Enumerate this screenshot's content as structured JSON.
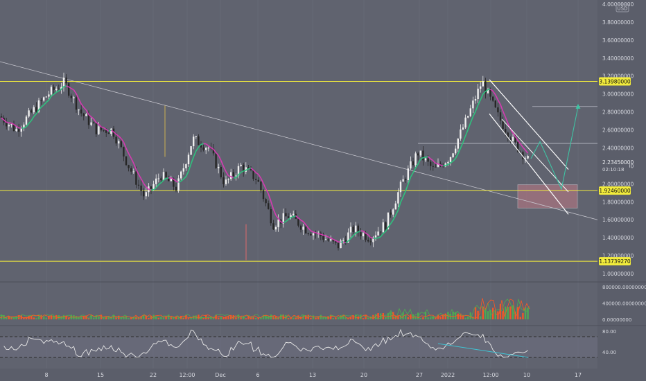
{
  "price_axis": {
    "currency": "USD",
    "ticks": [
      {
        "label": "4.00000000",
        "value": 4.0
      },
      {
        "label": "3.80000000",
        "value": 3.8
      },
      {
        "label": "3.60000000",
        "value": 3.6
      },
      {
        "label": "3.40000000",
        "value": 3.4
      },
      {
        "label": "3.20000000",
        "value": 3.2
      },
      {
        "label": "3.00000000",
        "value": 3.0
      },
      {
        "label": "2.80000000",
        "value": 2.8
      },
      {
        "label": "2.60000000",
        "value": 2.6
      },
      {
        "label": "2.40000000",
        "value": 2.4
      },
      {
        "label": "2.20000000",
        "value": 2.2
      },
      {
        "label": "2.00000000",
        "value": 2.0
      },
      {
        "label": "1.80000000",
        "value": 1.8
      },
      {
        "label": "1.60000000",
        "value": 1.6
      },
      {
        "label": "1.40000000",
        "value": 1.4
      },
      {
        "label": "1.20000000",
        "value": 1.2
      },
      {
        "label": "1.00000000",
        "value": 1.0
      }
    ]
  },
  "levels": [
    {
      "label": "3.13980000",
      "value": 3.1398,
      "color": "#f2ec3c"
    },
    {
      "label": "1.92460000",
      "value": 1.9246,
      "color": "#f2ec3c"
    },
    {
      "label": "1.13739270",
      "value": 1.1374,
      "color": "#f2ec3c"
    }
  ],
  "current_price": {
    "label": "2.23450000",
    "countdown": "02:10:18",
    "value": 2.2345
  },
  "volume_axis": {
    "ticks": [
      {
        "label": "800000.00000000",
        "value": 800000
      },
      {
        "label": "400000.00000000",
        "value": 400000
      },
      {
        "label": "0.00000000",
        "value": 0
      }
    ]
  },
  "rsi_axis": {
    "ticks": [
      {
        "label": "80.00",
        "value": 80
      },
      {
        "label": "40.00",
        "value": 40
      }
    ]
  },
  "time_axis": {
    "labels": [
      "8",
      "15",
      "22",
      "12:00",
      "Dec",
      "6",
      "13",
      "20",
      "27",
      "2022",
      "12:00",
      "10",
      "17"
    ]
  },
  "colors": {
    "background": "#60636f",
    "axis_panel": "#5b5e6a",
    "candle_up": "#f0f0f0",
    "candle_down": "#262626",
    "ma_up": "#2ec27e",
    "ma_down": "#d63ab2",
    "level": "#f2ec3c",
    "trendline": "#c8c8d0",
    "channel": "#ffffff",
    "projection": "#3fc4a4",
    "zone": "#c07a86",
    "volume_green": "#4caf50",
    "volume_red": "#ff5722",
    "rsi_line": "#e8e8e8"
  },
  "chart_data": {
    "type": "candlestick",
    "unit": "USD",
    "close_path": [
      {
        "x": "Nov 1",
        "close": 2.75
      },
      {
        "x": "Nov 3",
        "close": 2.6
      },
      {
        "x": "Nov 5",
        "close": 2.8
      },
      {
        "x": "Nov 7",
        "close": 3.0
      },
      {
        "x": "Nov 8",
        "close": 3.13
      },
      {
        "x": "Nov 10",
        "close": 2.8
      },
      {
        "x": "Nov 13",
        "close": 2.6
      },
      {
        "x": "Nov 17",
        "close": 2.6
      },
      {
        "x": "Nov 19",
        "close": 2.2
      },
      {
        "x": "Nov 20",
        "close": 1.85
      },
      {
        "x": "Nov 22",
        "close": 2.1
      },
      {
        "x": "Nov 24",
        "close": 1.95
      },
      {
        "x": "Nov 25",
        "close": 2.5
      },
      {
        "x": "Nov 26",
        "close": 2.4
      },
      {
        "x": "Nov 28",
        "close": 2.0
      },
      {
        "x": "Nov 30",
        "close": 2.2
      },
      {
        "x": "Dec 2",
        "close": 2.05
      },
      {
        "x": "Dec 4",
        "close": 1.55
      },
      {
        "x": "Dec 6",
        "close": 1.65
      },
      {
        "x": "Dec 9",
        "close": 1.5
      },
      {
        "x": "Dec 12",
        "close": 1.42
      },
      {
        "x": "Dec 14",
        "close": 1.3
      },
      {
        "x": "Dec 16",
        "close": 1.5
      },
      {
        "x": "Dec 19",
        "close": 1.4
      },
      {
        "x": "Dec 22",
        "close": 1.55
      },
      {
        "x": "Dec 24",
        "close": 2.0
      },
      {
        "x": "Dec 26",
        "close": 2.35
      },
      {
        "x": "Dec 28",
        "close": 2.15
      },
      {
        "x": "Dec 31",
        "close": 2.3
      },
      {
        "x": "Jan 2",
        "close": 2.7
      },
      {
        "x": "Jan 4",
        "close": 3.14
      },
      {
        "x": "Jan 6",
        "close": 2.75
      },
      {
        "x": "Jan 8",
        "close": 2.45
      },
      {
        "x": "Jan 10",
        "close": 2.2345
      }
    ],
    "volume_range": [
      0,
      800000
    ],
    "rsi_range": [
      40,
      80
    ]
  }
}
